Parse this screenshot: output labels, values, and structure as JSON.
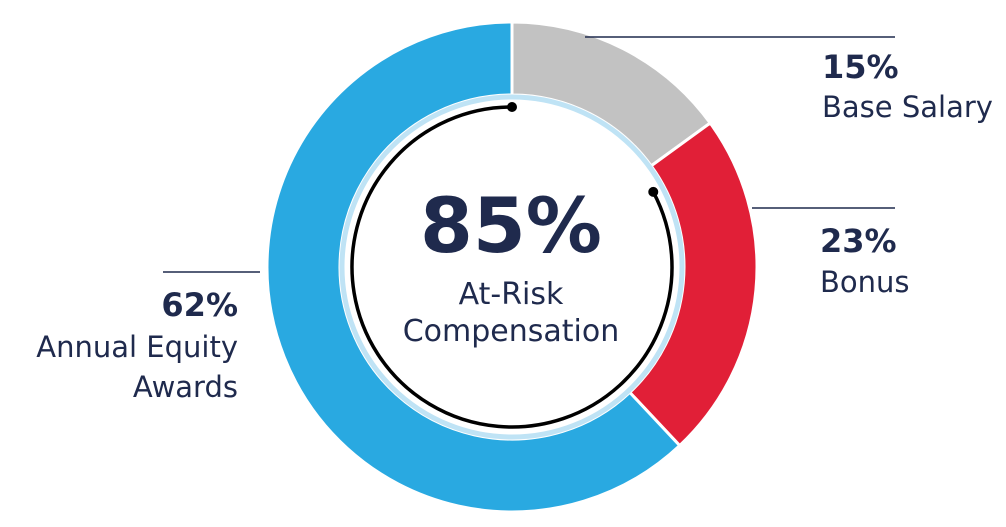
{
  "chart_data": {
    "type": "pie",
    "variant": "donut",
    "slices": [
      {
        "percent_label": "15%",
        "name": "Base Salary",
        "value": 15,
        "color": "#c2c2c2"
      },
      {
        "percent_label": "23%",
        "name": "Bonus",
        "value": 23,
        "color": "#e11f37"
      },
      {
        "percent_label": "62%",
        "name_lines": [
          "Annual Equity",
          "Awards"
        ],
        "value": 62,
        "color": "#29a9e1"
      }
    ],
    "center": {
      "value": "85%",
      "label_lines": [
        "At-Risk",
        "Compensation"
      ]
    },
    "colors": {
      "text": "#1f2a4d",
      "inner_ring": "#bfe3f5",
      "arc": "#000000",
      "leader": "#1f2a4d"
    }
  }
}
